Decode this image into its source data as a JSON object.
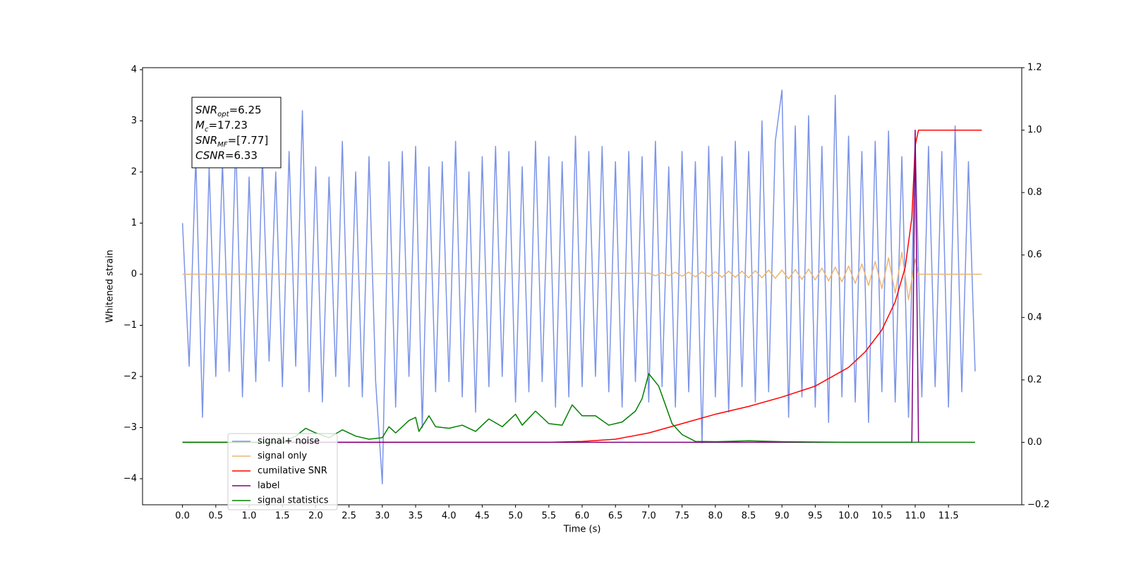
{
  "chart_data": {
    "type": "line",
    "xlabel": "Time (s)",
    "ylabel": "Whitened strain",
    "xlim": [
      -0.6,
      12.6
    ],
    "ylim": [
      -4.51,
      4.04
    ],
    "y2lim": [
      -0.2,
      1.2
    ],
    "xticks": [
      {
        "value": 0,
        "label": "0.0"
      },
      0.5,
      {
        "value": 1,
        "label": "1.0"
      },
      1.5,
      {
        "value": 2,
        "label": "2.0"
      },
      2.5,
      {
        "value": 3,
        "label": "3.0"
      },
      3.5,
      {
        "value": 4,
        "label": "4.0"
      },
      4.5,
      {
        "value": 5,
        "label": "5.0"
      },
      5.5,
      {
        "value": 6,
        "label": "6.0"
      },
      6.5,
      {
        "value": 7,
        "label": "7.0"
      },
      7.5,
      {
        "value": 8,
        "label": "8.0"
      },
      8.5,
      {
        "value": 9,
        "label": "9.0"
      },
      9.5,
      {
        "value": 10,
        "label": "10.0"
      },
      10.5,
      {
        "value": 11,
        "label": "11.0"
      },
      11.5
    ],
    "yticks": [
      {
        "value": -4,
        "label": "−4"
      },
      {
        "value": -3,
        "label": "−3"
      },
      {
        "value": -2,
        "label": "−2"
      },
      {
        "value": -1,
        "label": "−1"
      },
      0,
      1,
      2,
      3,
      4
    ],
    "y2ticks": [
      {
        "value": -0.2,
        "label": "−0.2"
      },
      {
        "value": 0,
        "label": "0.0"
      },
      0.2,
      0.4,
      0.6,
      0.8,
      {
        "value": 1,
        "label": "1.0"
      },
      1.2
    ],
    "legend": "lower left",
    "annotation": [
      {
        "var": "SNR",
        "sub": "opt",
        "text": "=6.25"
      },
      {
        "var": "M",
        "sub": "c",
        "text": "=17.23"
      },
      {
        "var": "SNR",
        "sub": "MF",
        "text": "=[7.77]"
      },
      {
        "var": "CSNR",
        "text": "=6.33"
      }
    ],
    "series": [
      {
        "name": "signal+ noise",
        "color": "#7b93e8",
        "x": [
          0,
          0.1,
          0.2,
          0.3,
          0.4,
          0.5,
          0.6,
          0.7,
          0.8,
          0.9,
          1,
          1.1,
          1.2,
          1.3,
          1.4,
          1.5,
          1.6,
          1.7,
          1.8,
          1.9,
          2,
          2.1,
          2.2,
          2.3,
          2.4,
          2.5,
          2.6,
          2.7,
          2.8,
          2.9,
          3,
          3.1,
          3.2,
          3.3,
          3.4,
          3.5,
          3.6,
          3.7,
          3.8,
          3.9,
          4,
          4.1,
          4.2,
          4.3,
          4.4,
          4.5,
          4.6,
          4.7,
          4.8,
          4.9,
          5,
          5.1,
          5.2,
          5.3,
          5.4,
          5.5,
          5.6,
          5.7,
          5.8,
          5.9,
          6,
          6.1,
          6.2,
          6.3,
          6.4,
          6.5,
          6.6,
          6.7,
          6.8,
          6.9,
          7,
          7.1,
          7.2,
          7.3,
          7.4,
          7.5,
          7.6,
          7.7,
          7.8,
          7.9,
          8,
          8.1,
          8.2,
          8.3,
          8.4,
          8.5,
          8.6,
          8.7,
          8.8,
          8.9,
          9,
          9.1,
          9.2,
          9.3,
          9.4,
          9.5,
          9.6,
          9.7,
          9.8,
          9.9,
          10,
          10.1,
          10.2,
          10.3,
          10.4,
          10.5,
          10.6,
          10.7,
          10.8,
          10.9,
          11,
          11.1,
          11.2,
          11.3,
          11.4,
          11.5,
          11.6,
          11.7,
          11.8,
          11.9
        ],
        "values": [
          1.0,
          -1.8,
          2.3,
          -2.8,
          2.1,
          -2.0,
          2.2,
          -1.9,
          2.6,
          -2.4,
          1.9,
          -2.1,
          2.3,
          -1.7,
          2.0,
          -2.2,
          2.4,
          -1.8,
          3.2,
          -2.3,
          2.1,
          -2.5,
          1.9,
          -2.0,
          2.6,
          -2.2,
          2.0,
          -2.4,
          2.3,
          -2.1,
          -4.1,
          2.2,
          -2.6,
          2.4,
          -2.0,
          2.5,
          -3.0,
          2.1,
          -2.3,
          2.2,
          -2.1,
          2.6,
          -2.4,
          2.0,
          -2.7,
          2.3,
          -2.2,
          2.5,
          -2.0,
          2.4,
          -2.5,
          2.1,
          -2.3,
          2.6,
          -2.1,
          2.3,
          -2.6,
          2.2,
          -2.4,
          2.7,
          -2.2,
          2.4,
          -2.0,
          2.5,
          -2.3,
          2.2,
          -2.6,
          2.4,
          -2.1,
          2.3,
          -2.5,
          2.6,
          -2.2,
          2.1,
          -2.6,
          2.4,
          -2.3,
          2.2,
          -3.3,
          2.5,
          -2.4,
          2.3,
          -2.7,
          2.6,
          -2.2,
          2.4,
          -2.5,
          3.0,
          -2.3,
          2.6,
          3.6,
          -2.8,
          2.9,
          -2.4,
          3.1,
          -2.6,
          2.5,
          -2.9,
          3.5,
          -2.4,
          2.7,
          -2.5,
          2.4,
          -2.9,
          2.6,
          -2.3,
          2.8,
          -2.5,
          2.3,
          -2.8,
          2.6,
          -2.4,
          2.5,
          -2.2,
          2.4,
          -2.6,
          2.9,
          -2.3,
          2.2,
          -1.9
        ]
      },
      {
        "name": "signal only",
        "color": "#e9b677",
        "x": [
          0,
          7,
          7.1,
          7.2,
          7.3,
          7.4,
          7.5,
          7.6,
          7.7,
          7.8,
          7.9,
          8,
          8.1,
          8.2,
          8.3,
          8.4,
          8.5,
          8.6,
          8.7,
          8.8,
          8.9,
          9,
          9.1,
          9.2,
          9.3,
          9.4,
          9.5,
          9.6,
          9.7,
          9.8,
          9.9,
          10,
          10.1,
          10.2,
          10.3,
          10.4,
          10.5,
          10.6,
          10.7,
          10.8,
          10.9,
          11,
          11.05,
          12
        ],
        "values": [
          0,
          0.02,
          -0.03,
          0.03,
          -0.03,
          0.04,
          -0.04,
          0.04,
          -0.05,
          0.05,
          -0.05,
          0.05,
          -0.06,
          0.06,
          -0.06,
          0.06,
          -0.07,
          0.07,
          -0.07,
          0.08,
          -0.08,
          0.08,
          -0.09,
          0.09,
          -0.1,
          0.1,
          -0.11,
          0.12,
          -0.13,
          0.14,
          -0.15,
          0.16,
          -0.18,
          0.2,
          -0.22,
          0.25,
          -0.28,
          0.32,
          -0.37,
          0.43,
          -0.5,
          0.3,
          0,
          0
        ]
      },
      {
        "name": "cumilative SNR",
        "color": "#ff0000",
        "axis": "y2",
        "x": [
          0,
          5.5,
          6,
          6.5,
          7,
          7.5,
          8,
          8.5,
          9,
          9.5,
          10,
          10.25,
          10.5,
          10.7,
          10.85,
          10.95,
          11,
          11.05,
          12
        ],
        "values": [
          0,
          0,
          0.003,
          0.01,
          0.03,
          0.06,
          0.09,
          0.115,
          0.145,
          0.18,
          0.24,
          0.29,
          0.36,
          0.45,
          0.56,
          0.72,
          0.95,
          1,
          1
        ]
      },
      {
        "name": "label",
        "color": "#800080",
        "axis": "y2",
        "x": [
          0,
          10.95,
          11,
          11.05
        ],
        "values": [
          0,
          0,
          1,
          0
        ]
      },
      {
        "name": "signal statistics",
        "color": "#008000",
        "axis": "y2",
        "x": [
          0,
          1.5,
          1.7,
          1.85,
          2,
          2.2,
          2.4,
          2.6,
          2.8,
          3,
          3.1,
          3.2,
          3.4,
          3.5,
          3.55,
          3.7,
          3.8,
          4,
          4.2,
          4.4,
          4.6,
          4.8,
          5,
          5.1,
          5.3,
          5.5,
          5.7,
          5.85,
          6,
          6.2,
          6.4,
          6.6,
          6.8,
          6.9,
          7,
          7.15,
          7.25,
          7.35,
          7.5,
          7.7,
          8,
          8.5,
          9,
          10,
          11.9
        ],
        "values": [
          0,
          0,
          0.02,
          0.045,
          0.03,
          0.015,
          0.04,
          0.02,
          0.01,
          0.015,
          0.05,
          0.03,
          0.07,
          0.08,
          0.035,
          0.085,
          0.05,
          0.045,
          0.055,
          0.035,
          0.075,
          0.05,
          0.09,
          0.055,
          0.1,
          0.06,
          0.055,
          0.12,
          0.085,
          0.085,
          0.055,
          0.065,
          0.1,
          0.14,
          0.22,
          0.18,
          0.12,
          0.06,
          0.025,
          0.003,
          0.002,
          0.005,
          0.002,
          0,
          0
        ]
      }
    ]
  }
}
